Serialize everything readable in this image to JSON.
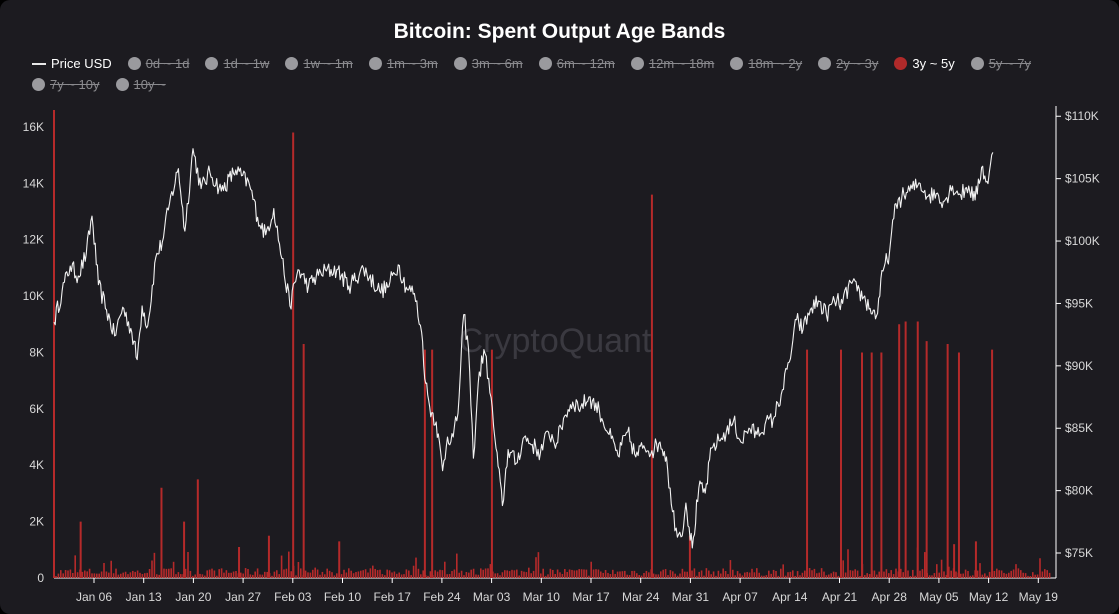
{
  "chart_data": {
    "type": "bar+line",
    "title": "Bitcoin: Spent Output Age Bands",
    "watermark": "CryptoQuant",
    "legend": [
      {
        "name": "Price USD",
        "marker": "line",
        "active": true,
        "color": "#e8e8e8"
      },
      {
        "name": "0d ~ 1d",
        "marker": "dot",
        "active": false,
        "color": "#9a9a9e"
      },
      {
        "name": "1d ~ 1w",
        "marker": "dot",
        "active": false,
        "color": "#9a9a9e"
      },
      {
        "name": "1w ~ 1m",
        "marker": "dot",
        "active": false,
        "color": "#9a9a9e"
      },
      {
        "name": "1m ~ 3m",
        "marker": "dot",
        "active": false,
        "color": "#9a9a9e"
      },
      {
        "name": "3m ~ 6m",
        "marker": "dot",
        "active": false,
        "color": "#9a9a9e"
      },
      {
        "name": "6m ~ 12m",
        "marker": "dot",
        "active": false,
        "color": "#9a9a9e"
      },
      {
        "name": "12m ~ 18m",
        "marker": "dot",
        "active": false,
        "color": "#9a9a9e"
      },
      {
        "name": "18m ~ 2y",
        "marker": "dot",
        "active": false,
        "color": "#9a9a9e"
      },
      {
        "name": "2y ~ 3y",
        "marker": "dot",
        "active": false,
        "color": "#9a9a9e"
      },
      {
        "name": "3y ~ 5y",
        "marker": "dot",
        "active": true,
        "color": "#b02a2a"
      },
      {
        "name": "5y ~ 7y",
        "marker": "dot",
        "active": false,
        "color": "#9a9a9e"
      },
      {
        "name": "7y ~ 10y",
        "marker": "dot",
        "active": false,
        "color": "#9a9a9e"
      },
      {
        "name": "10y ~",
        "marker": "dot",
        "active": false,
        "color": "#9a9a9e"
      }
    ],
    "x_ticks": [
      "Jan 06",
      "Jan 13",
      "Jan 20",
      "Jan 27",
      "Feb 03",
      "Feb 10",
      "Feb 17",
      "Feb 24",
      "Mar 03",
      "Mar 10",
      "Mar 17",
      "Mar 24",
      "Mar 31",
      "Apr 07",
      "Apr 14",
      "Apr 21",
      "Apr 28",
      "May 05",
      "May 12",
      "May 19"
    ],
    "y_left": {
      "ticks": [
        "0",
        "2K",
        "4K",
        "6K",
        "8K",
        "10K",
        "12K",
        "14K",
        "16K"
      ],
      "range": [
        0,
        16600
      ]
    },
    "y_right": {
      "ticks": [
        "$75K",
        "$80K",
        "$85K",
        "$90K",
        "$95K",
        "$100K",
        "$105K",
        "$110K"
      ],
      "range": [
        73000,
        110500
      ]
    },
    "colors": {
      "bars": "#b52a2a",
      "price": "#f2f2f2",
      "axis": "#ffffff",
      "background": "#1c1b20"
    },
    "spikes_3y_5y": [
      {
        "day": 0.0,
        "value": 16600
      },
      {
        "day": 3.3,
        "value": 2000
      },
      {
        "day": 13.3,
        "value": 3200
      },
      {
        "day": 16.1,
        "value": 2000
      },
      {
        "day": 17.8,
        "value": 3500
      },
      {
        "day": 22.9,
        "value": 1100
      },
      {
        "day": 26.6,
        "value": 1500
      },
      {
        "day": 29.6,
        "value": 15800
      },
      {
        "day": 30.9,
        "value": 8300
      },
      {
        "day": 35.3,
        "value": 1300
      },
      {
        "day": 45.9,
        "value": 8100
      },
      {
        "day": 46.8,
        "value": 8100
      },
      {
        "day": 54.2,
        "value": 8100
      },
      {
        "day": 74.0,
        "value": 13600
      },
      {
        "day": 78.7,
        "value": 1500
      },
      {
        "day": 93.2,
        "value": 8100
      },
      {
        "day": 97.4,
        "value": 8100
      },
      {
        "day": 100.0,
        "value": 8000
      },
      {
        "day": 101.2,
        "value": 8000
      },
      {
        "day": 102.4,
        "value": 8000
      },
      {
        "day": 104.6,
        "value": 9000
      },
      {
        "day": 105.4,
        "value": 9100
      },
      {
        "day": 106.9,
        "value": 9100
      },
      {
        "day": 108.0,
        "value": 8400
      },
      {
        "day": 110.6,
        "value": 8300
      },
      {
        "day": 111.4,
        "value": 1200
      },
      {
        "day": 112.0,
        "value": 8000
      },
      {
        "day": 114.1,
        "value": 1300
      },
      {
        "day": 116.1,
        "value": 8100
      }
    ],
    "price_usd": [
      {
        "day": 0.0,
        "value": 93500
      },
      {
        "day": 1.0,
        "value": 96000
      },
      {
        "day": 2.0,
        "value": 98000
      },
      {
        "day": 3.0,
        "value": 97200
      },
      {
        "day": 4.0,
        "value": 99000
      },
      {
        "day": 4.7,
        "value": 102000
      },
      {
        "day": 5.5,
        "value": 96500
      },
      {
        "day": 6.5,
        "value": 94500
      },
      {
        "day": 7.5,
        "value": 92400
      },
      {
        "day": 8.5,
        "value": 94700
      },
      {
        "day": 9.5,
        "value": 93000
      },
      {
        "day": 10.3,
        "value": 90500
      },
      {
        "day": 10.9,
        "value": 94800
      },
      {
        "day": 11.6,
        "value": 93200
      },
      {
        "day": 12.6,
        "value": 98700
      },
      {
        "day": 13.4,
        "value": 99900
      },
      {
        "day": 14.3,
        "value": 103000
      },
      {
        "day": 15.4,
        "value": 105800
      },
      {
        "day": 16.2,
        "value": 100800
      },
      {
        "day": 17.2,
        "value": 107400
      },
      {
        "day": 18.2,
        "value": 104200
      },
      {
        "day": 19.3,
        "value": 105500
      },
      {
        "day": 20.7,
        "value": 104000
      },
      {
        "day": 22.5,
        "value": 105700
      },
      {
        "day": 24.2,
        "value": 104500
      },
      {
        "day": 25.2,
        "value": 101900
      },
      {
        "day": 26.2,
        "value": 100500
      },
      {
        "day": 27.2,
        "value": 102600
      },
      {
        "day": 28.2,
        "value": 98600
      },
      {
        "day": 29.2,
        "value": 94800
      },
      {
        "day": 30.2,
        "value": 97700
      },
      {
        "day": 31.5,
        "value": 96400
      },
      {
        "day": 33.0,
        "value": 97500
      },
      {
        "day": 35.0,
        "value": 97700
      },
      {
        "day": 36.5,
        "value": 96400
      },
      {
        "day": 38.3,
        "value": 97800
      },
      {
        "day": 40.3,
        "value": 96000
      },
      {
        "day": 41.3,
        "value": 96300
      },
      {
        "day": 42.6,
        "value": 98100
      },
      {
        "day": 43.6,
        "value": 96300
      },
      {
        "day": 44.6,
        "value": 95800
      },
      {
        "day": 45.5,
        "value": 92700
      },
      {
        "day": 46.0,
        "value": 88600
      },
      {
        "day": 46.5,
        "value": 86700
      },
      {
        "day": 47.3,
        "value": 85500
      },
      {
        "day": 48.1,
        "value": 81600
      },
      {
        "day": 48.7,
        "value": 84300
      },
      {
        "day": 49.4,
        "value": 84300
      },
      {
        "day": 50.0,
        "value": 86200
      },
      {
        "day": 50.7,
        "value": 94100
      },
      {
        "day": 51.3,
        "value": 91400
      },
      {
        "day": 51.9,
        "value": 82600
      },
      {
        "day": 52.5,
        "value": 88600
      },
      {
        "day": 53.2,
        "value": 91300
      },
      {
        "day": 53.8,
        "value": 89000
      },
      {
        "day": 54.7,
        "value": 83400
      },
      {
        "day": 55.5,
        "value": 78800
      },
      {
        "day": 56.2,
        "value": 83300
      },
      {
        "day": 57.2,
        "value": 82200
      },
      {
        "day": 58.2,
        "value": 84300
      },
      {
        "day": 59.2,
        "value": 83700
      },
      {
        "day": 60.2,
        "value": 83000
      },
      {
        "day": 61.2,
        "value": 84700
      },
      {
        "day": 62.2,
        "value": 83800
      },
      {
        "day": 63.2,
        "value": 86000
      },
      {
        "day": 64.2,
        "value": 87100
      },
      {
        "day": 65.2,
        "value": 86700
      },
      {
        "day": 66.2,
        "value": 87500
      },
      {
        "day": 67.5,
        "value": 86400
      },
      {
        "day": 68.7,
        "value": 84500
      },
      {
        "day": 69.8,
        "value": 82800
      },
      {
        "day": 71.0,
        "value": 84700
      },
      {
        "day": 72.0,
        "value": 82700
      },
      {
        "day": 73.0,
        "value": 83600
      },
      {
        "day": 74.0,
        "value": 83200
      },
      {
        "day": 75.0,
        "value": 83900
      },
      {
        "day": 75.8,
        "value": 82700
      },
      {
        "day": 76.4,
        "value": 78900
      },
      {
        "day": 77.0,
        "value": 77000
      },
      {
        "day": 77.6,
        "value": 76300
      },
      {
        "day": 78.2,
        "value": 79000
      },
      {
        "day": 79.0,
        "value": 75400
      },
      {
        "day": 79.8,
        "value": 80200
      },
      {
        "day": 80.6,
        "value": 79800
      },
      {
        "day": 81.4,
        "value": 83400
      },
      {
        "day": 82.3,
        "value": 84000
      },
      {
        "day": 83.2,
        "value": 84700
      },
      {
        "day": 84.1,
        "value": 85600
      },
      {
        "day": 85.0,
        "value": 83900
      },
      {
        "day": 86.0,
        "value": 85000
      },
      {
        "day": 87.0,
        "value": 84500
      },
      {
        "day": 88.0,
        "value": 85300
      },
      {
        "day": 89.0,
        "value": 85700
      },
      {
        "day": 90.0,
        "value": 87700
      },
      {
        "day": 91.0,
        "value": 90300
      },
      {
        "day": 91.9,
        "value": 93700
      },
      {
        "day": 92.7,
        "value": 92900
      },
      {
        "day": 93.6,
        "value": 94500
      },
      {
        "day": 94.6,
        "value": 95200
      },
      {
        "day": 95.6,
        "value": 94100
      },
      {
        "day": 96.6,
        "value": 95200
      },
      {
        "day": 97.6,
        "value": 95000
      },
      {
        "day": 98.6,
        "value": 96700
      },
      {
        "day": 99.4,
        "value": 96000
      },
      {
        "day": 100.2,
        "value": 95500
      },
      {
        "day": 101.0,
        "value": 94600
      },
      {
        "day": 101.8,
        "value": 94000
      },
      {
        "day": 102.6,
        "value": 97600
      },
      {
        "day": 103.4,
        "value": 99100
      },
      {
        "day": 104.2,
        "value": 103000
      },
      {
        "day": 105.2,
        "value": 103700
      },
      {
        "day": 106.2,
        "value": 104200
      },
      {
        "day": 107.2,
        "value": 104600
      },
      {
        "day": 108.2,
        "value": 103600
      },
      {
        "day": 109.2,
        "value": 103800
      },
      {
        "day": 110.2,
        "value": 103200
      },
      {
        "day": 111.2,
        "value": 104400
      },
      {
        "day": 112.2,
        "value": 103700
      },
      {
        "day": 113.2,
        "value": 104400
      },
      {
        "day": 114.0,
        "value": 103300
      },
      {
        "day": 114.8,
        "value": 105900
      },
      {
        "day": 115.6,
        "value": 104600
      },
      {
        "day": 116.2,
        "value": 107100
      }
    ]
  }
}
